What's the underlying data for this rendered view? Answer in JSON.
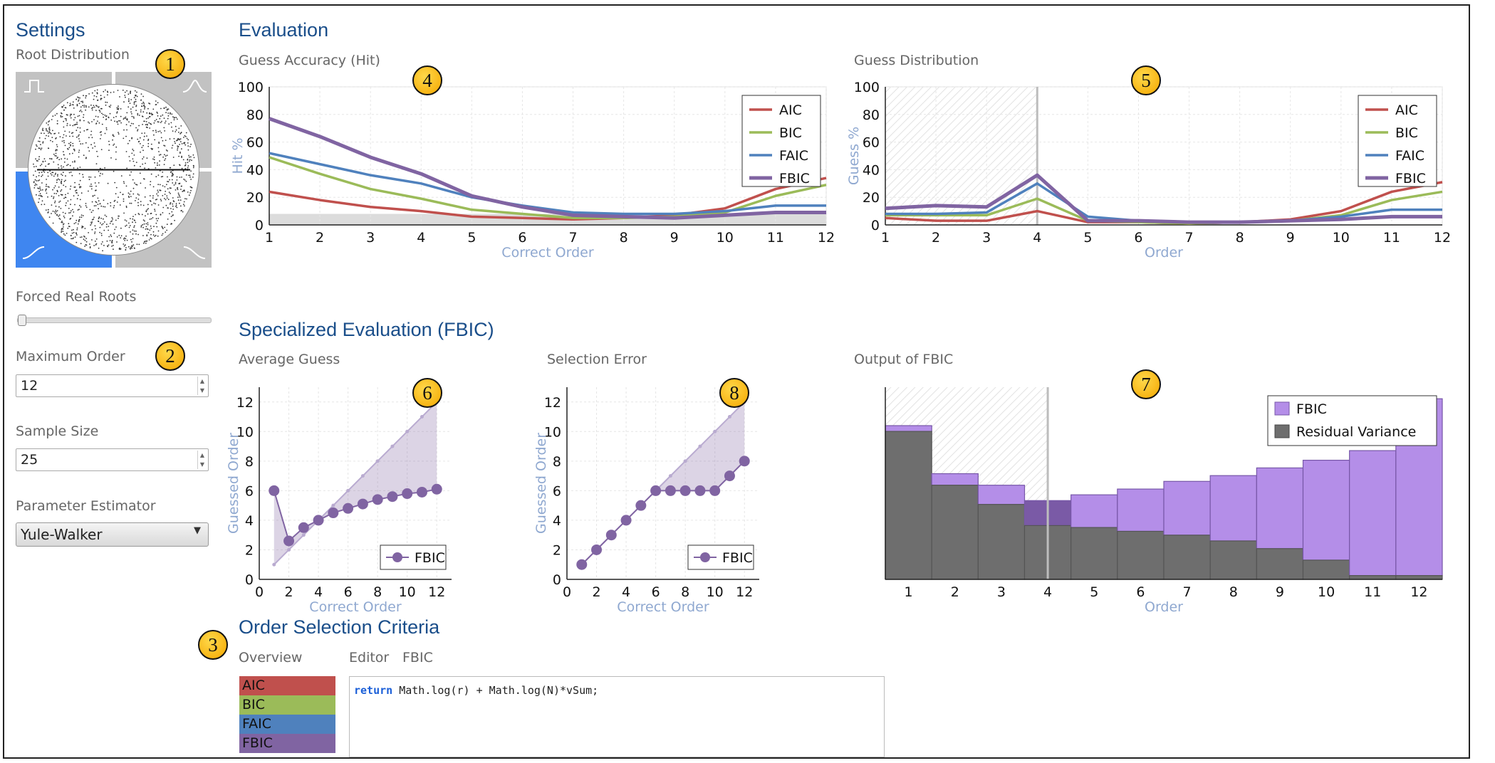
{
  "settings": {
    "title": "Settings",
    "root_distribution_label": "Root Distribution",
    "forced_real_roots_label": "Forced Real Roots",
    "forced_real_roots_value": 0,
    "maximum_order_label": "Maximum Order",
    "maximum_order_value": "12",
    "sample_size_label": "Sample Size",
    "sample_size_value": "25",
    "parameter_estimator_label": "Parameter Estimator",
    "parameter_estimator_value": "Yule-Walker"
  },
  "evaluation": {
    "title": "Evaluation",
    "specialized_title": "Specialized Evaluation (FBIC)"
  },
  "criteria_section": {
    "title": "Order Selection Criteria",
    "overview_label": "Overview",
    "editor_tab": "Editor",
    "fbic_tab": "FBIC",
    "items": [
      "AIC",
      "BIC",
      "FAIC",
      "FBIC"
    ],
    "code_keyword": "return",
    "code_rest": " Math.log(r) + Math.log(N)*vSum;"
  },
  "badges": [
    "1",
    "2",
    "3",
    "4",
    "5",
    "6",
    "7",
    "8"
  ],
  "colors": {
    "AIC": "#c0504d",
    "BIC": "#9bbb59",
    "FAIC": "#4f81bd",
    "FBIC": "#8064a2",
    "heading": "#1a4e8a",
    "axis_title": "#8fa8d0",
    "fbic_bar": "#b48ee8",
    "residual_bar": "#6e6e6e"
  },
  "chart_data": [
    {
      "id": "guess-accuracy",
      "type": "line",
      "title": "Guess Accuracy (Hit)",
      "xlabel": "Correct Order",
      "ylabel": "Hit %",
      "x": [
        1,
        2,
        3,
        4,
        5,
        6,
        7,
        8,
        9,
        10,
        11,
        12
      ],
      "xlim": [
        1,
        12
      ],
      "ylim": [
        0,
        100
      ],
      "yticks": [
        0,
        20,
        40,
        60,
        80,
        100
      ],
      "grid": true,
      "legend": "top-right",
      "baseline_band": 8,
      "series": [
        {
          "name": "AIC",
          "values": [
            24,
            18,
            13,
            10,
            6,
            5,
            4,
            5,
            7,
            12,
            26,
            34
          ]
        },
        {
          "name": "BIC",
          "values": [
            49,
            37,
            26,
            19,
            11,
            8,
            5,
            5,
            6,
            9,
            21,
            29
          ]
        },
        {
          "name": "FAIC",
          "values": [
            52,
            44,
            36,
            30,
            20,
            14,
            9,
            8,
            8,
            10,
            14,
            14
          ]
        },
        {
          "name": "FBIC",
          "values": [
            77,
            64,
            49,
            37,
            21,
            13,
            7,
            6,
            5,
            7,
            9,
            9
          ]
        }
      ]
    },
    {
      "id": "guess-distribution",
      "type": "line",
      "title": "Guess Distribution",
      "xlabel": "Order",
      "ylabel": "Guess %",
      "x": [
        1,
        2,
        3,
        4,
        5,
        6,
        7,
        8,
        9,
        10,
        11,
        12
      ],
      "xlim": [
        1,
        12
      ],
      "ylim": [
        0,
        100
      ],
      "yticks": [
        0,
        20,
        40,
        60,
        80,
        100
      ],
      "grid": true,
      "legend": "top-right",
      "marker_x": 4,
      "series": [
        {
          "name": "AIC",
          "values": [
            5,
            3,
            3,
            10,
            2,
            2,
            1,
            2,
            4,
            10,
            24,
            31
          ]
        },
        {
          "name": "BIC",
          "values": [
            7,
            7,
            7,
            19,
            3,
            2,
            1,
            2,
            3,
            7,
            18,
            24
          ]
        },
        {
          "name": "FAIC",
          "values": [
            8,
            8,
            9,
            30,
            6,
            3,
            2,
            2,
            3,
            6,
            11,
            11
          ]
        },
        {
          "name": "FBIC",
          "values": [
            12,
            14,
            13,
            36,
            3,
            3,
            2,
            2,
            3,
            4,
            6,
            6
          ]
        }
      ]
    },
    {
      "id": "average-guess",
      "type": "scatter",
      "title": "Average Guess",
      "xlabel": "Correct Order",
      "ylabel": "Guessed Order",
      "x": [
        1,
        2,
        3,
        4,
        5,
        6,
        7,
        8,
        9,
        10,
        11,
        12
      ],
      "xlim": [
        0,
        13
      ],
      "ylim": [
        0,
        13
      ],
      "xticks": [
        0,
        2,
        4,
        6,
        8,
        10,
        12
      ],
      "yticks": [
        0,
        2,
        4,
        6,
        8,
        10,
        12
      ],
      "grid": true,
      "legend": "bottom-right",
      "series": [
        {
          "name": "FBIC",
          "values": [
            6,
            2.6,
            3.5,
            4,
            4.5,
            4.8,
            5.1,
            5.4,
            5.6,
            5.8,
            5.9,
            6.1
          ]
        }
      ]
    },
    {
      "id": "selection-error",
      "type": "scatter",
      "title": "Selection Error",
      "xlabel": "Correct Order",
      "ylabel": "Guessed Order",
      "x": [
        1,
        2,
        3,
        4,
        5,
        6,
        7,
        8,
        9,
        10,
        11,
        12
      ],
      "xlim": [
        0,
        13
      ],
      "ylim": [
        0,
        13
      ],
      "xticks": [
        0,
        2,
        4,
        6,
        8,
        10,
        12
      ],
      "yticks": [
        0,
        2,
        4,
        6,
        8,
        10,
        12
      ],
      "grid": true,
      "legend": "bottom-right",
      "series": [
        {
          "name": "FBIC",
          "values": [
            1,
            2,
            3,
            4,
            5,
            6,
            6,
            6,
            6,
            6,
            7,
            8
          ]
        }
      ]
    },
    {
      "id": "output-of-fbic",
      "type": "bar",
      "title": "Output of FBIC",
      "xlabel": "Order",
      "categories": [
        "1",
        "2",
        "3",
        "4",
        "5",
        "6",
        "7",
        "8",
        "9",
        "10",
        "11",
        "12"
      ],
      "legend": "top-right",
      "marker_x": 4,
      "series": [
        {
          "name": "FBIC",
          "values": [
            0.8,
            0.55,
            0.49,
            0.41,
            0.44,
            0.47,
            0.51,
            0.54,
            0.58,
            0.62,
            0.67,
            0.94
          ]
        },
        {
          "name": "Residual Variance",
          "values": [
            0.77,
            0.49,
            0.39,
            0.28,
            0.27,
            0.25,
            0.23,
            0.2,
            0.16,
            0.1,
            0.02,
            0.02
          ]
        }
      ]
    }
  ]
}
